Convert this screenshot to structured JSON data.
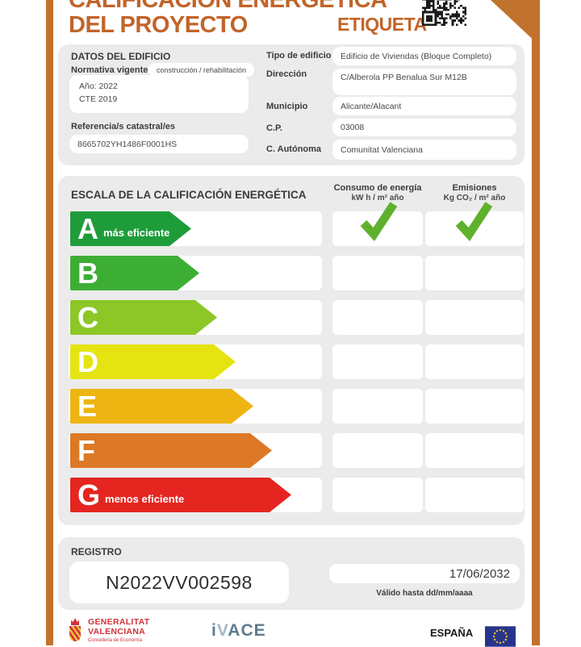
{
  "header": {
    "title_line1": "CALIFICACIÓN ENERGÉTICA",
    "title_line2": "DEL PROYECTO",
    "etiqueta_label": "ETIQUETA"
  },
  "building": {
    "section_title": "DATOS DEL EDIFICIO",
    "normativa_label": "Normativa vigente",
    "normativa_tag": "construcción / rehabilitación",
    "normativa_line1": "Año: 2022",
    "normativa_line2": "CTE 2019",
    "referencia_label": "Referencia/s catastral/es",
    "referencia_value": "8665702YH1486F0001HS",
    "fields": [
      {
        "label": "Tipo de edificio",
        "value": "Edificio de Viviendas (Bloque Completo)"
      },
      {
        "label": "Dirección",
        "value": "C/Alberola PP Benalua Sur M12B"
      },
      {
        "label": "Municipio",
        "value": "Alicante/Alacant"
      },
      {
        "label": "C.P.",
        "value": "03008"
      },
      {
        "label": "C. Autónoma",
        "value": "Comunitat Valenciana"
      }
    ]
  },
  "scale": {
    "title": "ESCALA DE LA CALIFICACIÓN ENERGÉTICA",
    "col1_title": "Consumo de energía",
    "col1_unit": "kW h / m² año",
    "col2_title": "Emisiones",
    "col2_unit": "Kg CO₂ / m² año",
    "check_color": "#5FB12D",
    "ratings": [
      {
        "letter": "A",
        "note": "más eficiente",
        "color": "#1F9C3A",
        "arrow_width": 150,
        "consumo_checked": true,
        "emisiones_checked": true
      },
      {
        "letter": "B",
        "note": "",
        "color": "#3DAE34",
        "arrow_width": 160,
        "consumo_checked": false,
        "emisiones_checked": false
      },
      {
        "letter": "C",
        "note": "",
        "color": "#8CC727",
        "arrow_width": 182,
        "consumo_checked": false,
        "emisiones_checked": false
      },
      {
        "letter": "D",
        "note": "",
        "color": "#E5E411",
        "arrow_width": 205,
        "consumo_checked": false,
        "emisiones_checked": false
      },
      {
        "letter": "E",
        "note": "",
        "color": "#EDB511",
        "arrow_width": 227,
        "consumo_checked": false,
        "emisiones_checked": false
      },
      {
        "letter": "F",
        "note": "",
        "color": "#DD7826",
        "arrow_width": 250,
        "consumo_checked": false,
        "emisiones_checked": false
      },
      {
        "letter": "G",
        "note": "menos eficiente",
        "color": "#E52620",
        "arrow_width": 274,
        "consumo_checked": false,
        "emisiones_checked": false
      }
    ]
  },
  "registro": {
    "section_title": "REGISTRO",
    "number": "N2022VV002598",
    "valid_until_date": "17/06/2032",
    "valid_until_label": "Válido hasta dd/mm/aaaa"
  },
  "footer": {
    "gva_line1": "GENERALITAT",
    "gva_line2": "VALENCIANA",
    "gva_sub": "Conselleria de Economía",
    "ivace_parts": [
      "i",
      "V",
      "ACE"
    ],
    "espana_label": "ESPAÑA"
  },
  "colors": {
    "accent_orange": "#C1722C",
    "title_orange": "#C2642A",
    "panel_gray": "#EBEBEB",
    "eu_flag_blue": "#27348B",
    "eu_star_yellow": "#FFD617",
    "gva_red": "#D13239",
    "ivace_blue": "#5E7B90"
  }
}
